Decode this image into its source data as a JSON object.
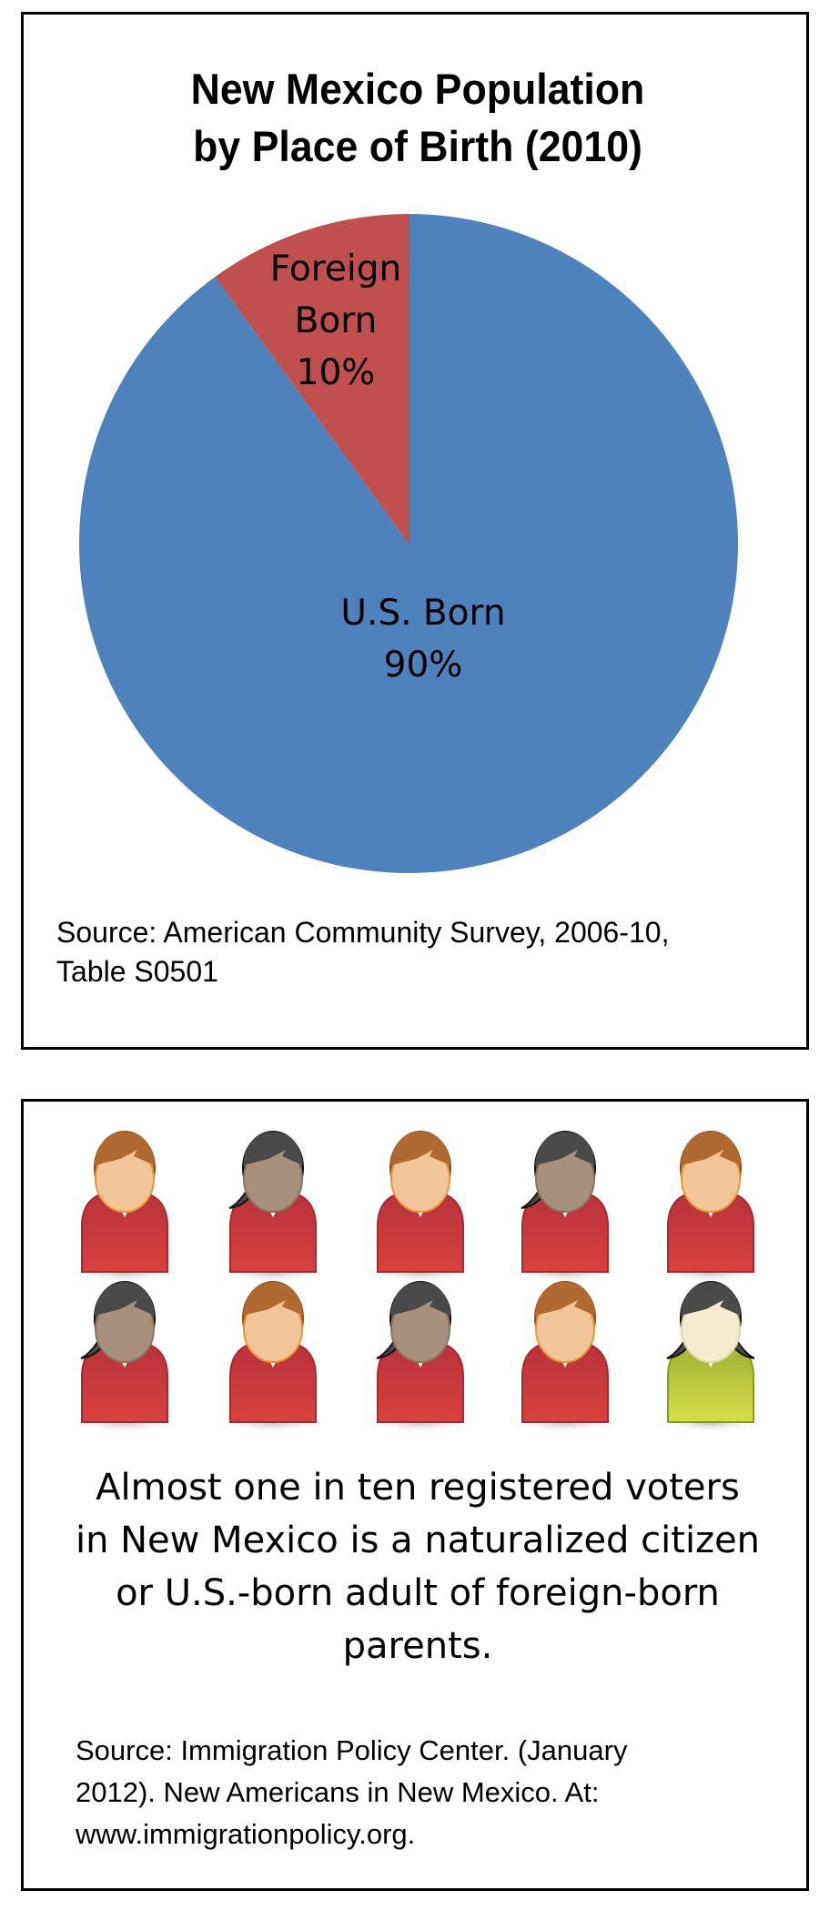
{
  "chart_data": {
    "type": "pie",
    "title": "New Mexico Population by Place of Birth (2010)",
    "title_lines": [
      "New Mexico Population",
      "by Place of Birth (2010)"
    ],
    "slices": [
      {
        "label": "U.S. Born",
        "label_lines": [
          "U.S. Born"
        ],
        "value": 90,
        "value_label": "90%",
        "color": "#4f81bd"
      },
      {
        "label": "Foreign Born",
        "label_lines": [
          "Foreign",
          "Born"
        ],
        "value": 10,
        "value_label": "10%",
        "color": "#c0504d"
      }
    ],
    "source_lines": [
      "Source: American Community Survey, 2006-10,",
      "Table S0501"
    ]
  },
  "infographic": {
    "people": [
      {
        "kind": "man",
        "shirt": "red"
      },
      {
        "kind": "woman",
        "shirt": "red"
      },
      {
        "kind": "man",
        "shirt": "red"
      },
      {
        "kind": "woman",
        "shirt": "red"
      },
      {
        "kind": "man",
        "shirt": "red"
      },
      {
        "kind": "woman",
        "shirt": "red"
      },
      {
        "kind": "man",
        "shirt": "red"
      },
      {
        "kind": "woman",
        "shirt": "red"
      },
      {
        "kind": "man",
        "shirt": "red"
      },
      {
        "kind": "woman-light",
        "shirt": "green"
      }
    ],
    "colors": {
      "red": "#c8383a",
      "green": "#b5c43a"
    },
    "message_lines": [
      "Almost one in ten registered voters",
      "in New Mexico is a naturalized citizen",
      "or U.S.-born adult of foreign-born",
      "parents."
    ],
    "source_lines": [
      "Source: Immigration Policy Center. (January",
      "2012). New Americans in New Mexico. At:",
      "www.immigrationpolicy.org."
    ]
  }
}
